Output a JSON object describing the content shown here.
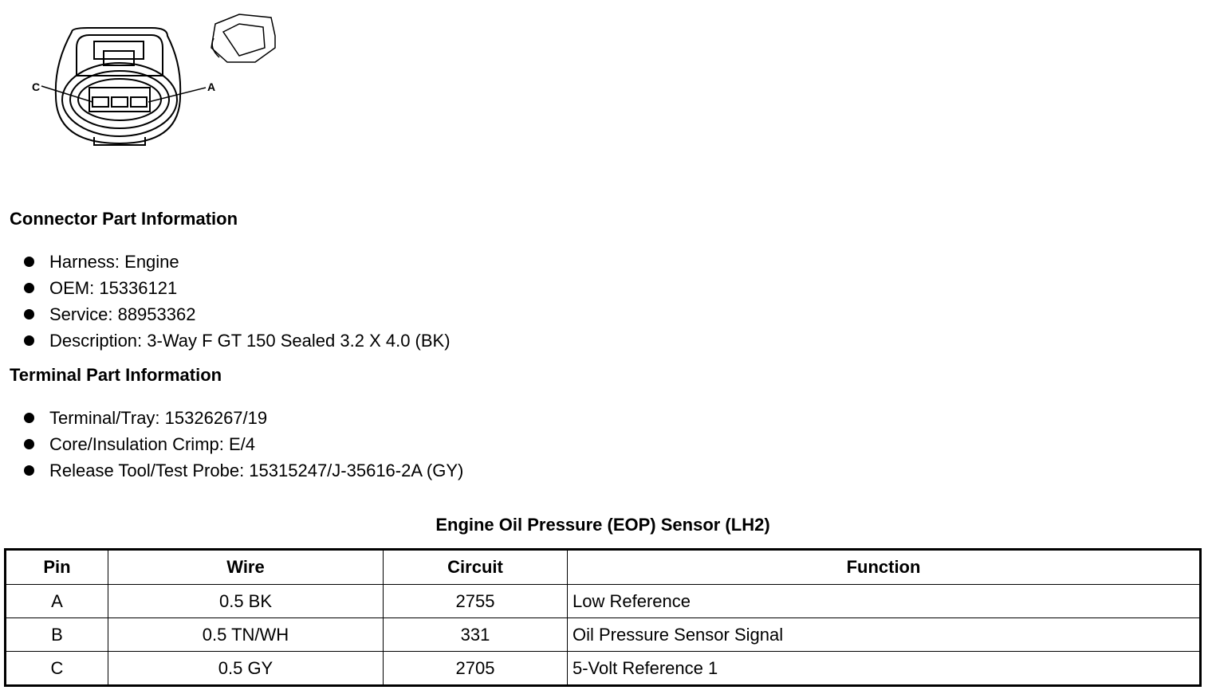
{
  "diagram": {
    "pin_labels": [
      "C",
      "A"
    ]
  },
  "connector_info": {
    "heading": "Connector Part Information",
    "items": [
      "Harness: Engine",
      "OEM: 15336121",
      "Service: 88953362",
      "Description: 3-Way F GT 150 Sealed 3.2 X 4.0 (BK)"
    ]
  },
  "terminal_info": {
    "heading": "Terminal Part Information",
    "items": [
      "Terminal/Tray: 15326267/19",
      "Core/Insulation Crimp: E/4",
      "Release Tool/Test Probe: 15315247/J-35616-2A (GY)"
    ]
  },
  "table": {
    "caption": "Engine Oil Pressure (EOP) Sensor (LH2)",
    "headers": [
      "Pin",
      "Wire",
      "Circuit",
      "Function"
    ],
    "rows": [
      [
        "A",
        "0.5 BK",
        "2755",
        "Low Reference"
      ],
      [
        "B",
        "0.5 TN/WH",
        "331",
        "Oil Pressure Sensor Signal"
      ],
      [
        "C",
        "0.5 GY",
        "2705",
        "5-Volt Reference 1"
      ]
    ]
  }
}
